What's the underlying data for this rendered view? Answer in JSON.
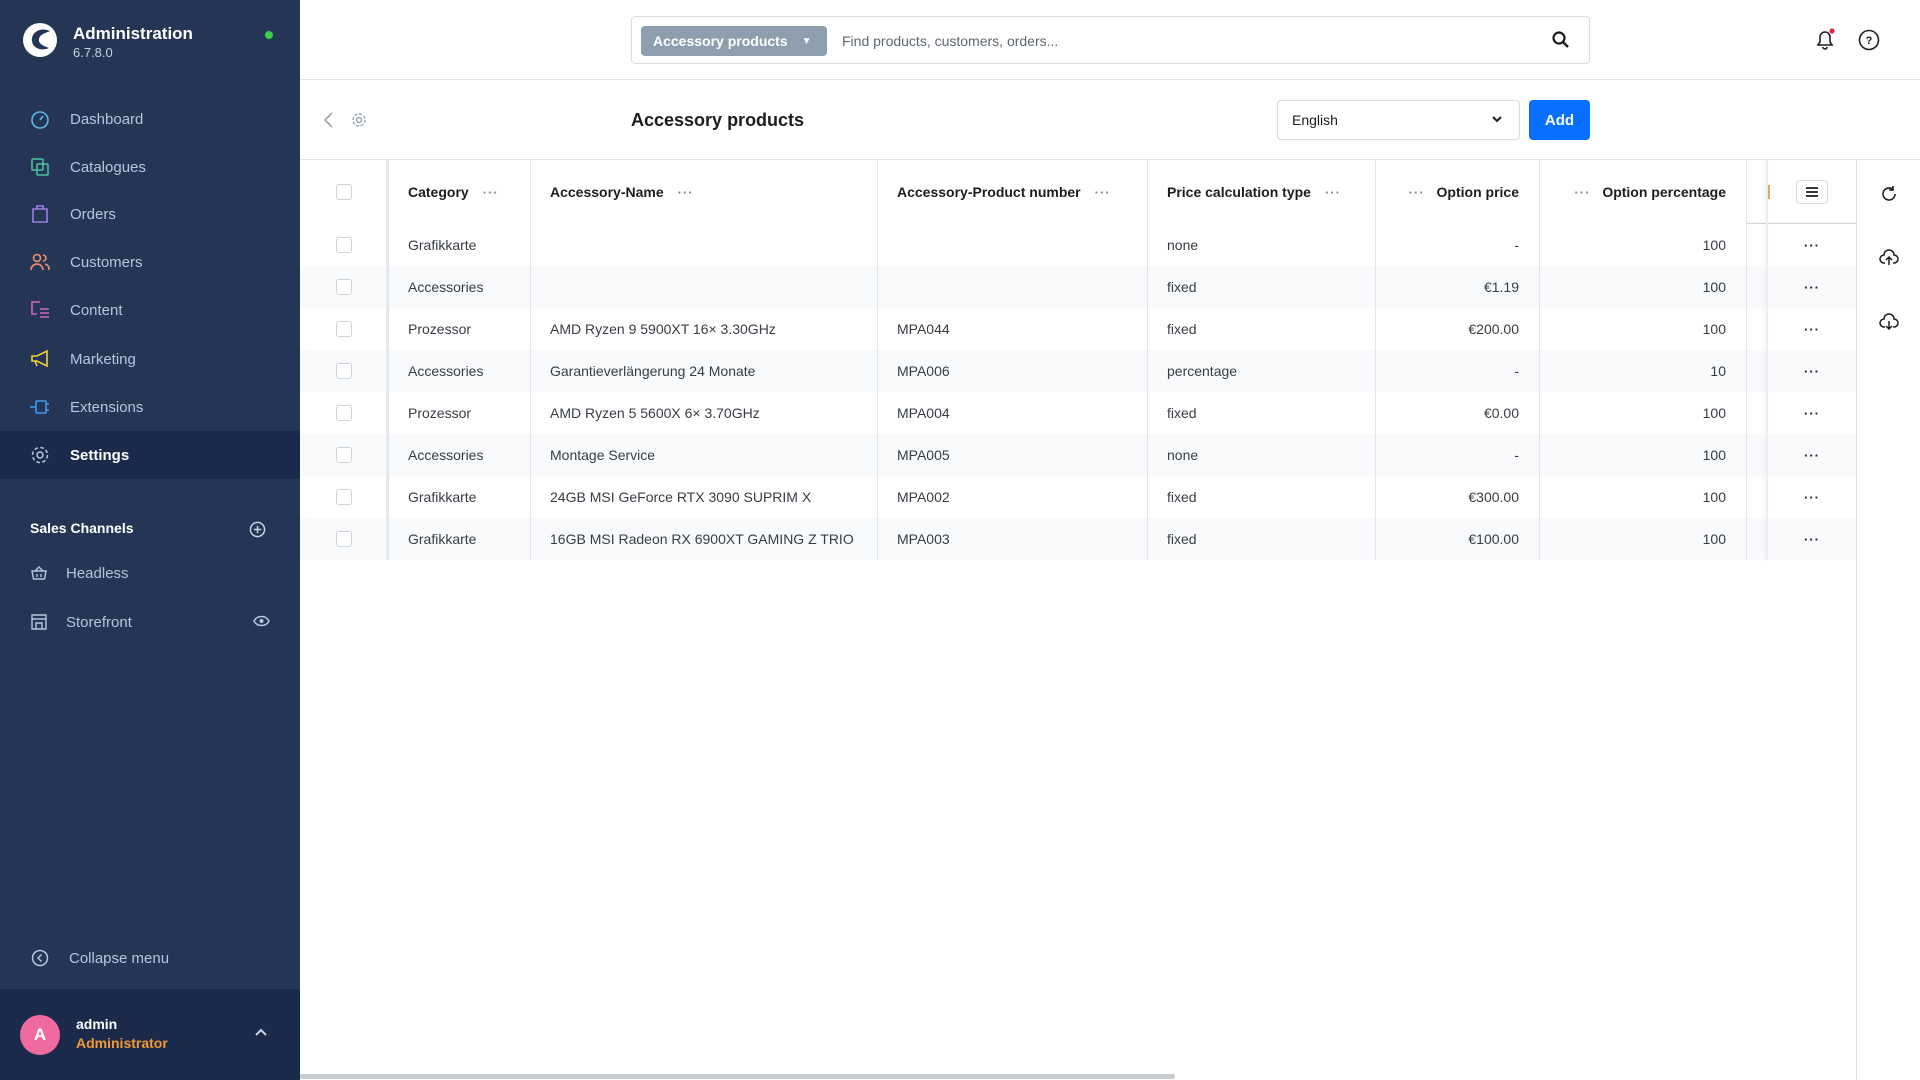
{
  "app": {
    "title": "Administration",
    "version": "6.7.8.0",
    "status_color": "#37d046"
  },
  "sidebar": {
    "items": [
      {
        "label": "Dashboard",
        "icon": "dashboard-icon",
        "color": "#5cb8e6"
      },
      {
        "label": "Catalogues",
        "icon": "catalogues-icon",
        "color": "#4ac39a"
      },
      {
        "label": "Orders",
        "icon": "orders-icon",
        "color": "#9d7fe6"
      },
      {
        "label": "Customers",
        "icon": "customers-icon",
        "color": "#f0936b"
      },
      {
        "label": "Content",
        "icon": "content-icon",
        "color": "#d665c4"
      },
      {
        "label": "Marketing",
        "icon": "marketing-icon",
        "color": "#f2d434"
      },
      {
        "label": "Extensions",
        "icon": "extensions-icon",
        "color": "#3d9bf0"
      },
      {
        "label": "Settings",
        "icon": "settings-icon",
        "color": "#b8c6dc",
        "active": true
      }
    ],
    "sales_channels_title": "Sales Channels",
    "sales_channels": [
      {
        "label": "Headless"
      },
      {
        "label": "Storefront"
      }
    ],
    "collapse_label": "Collapse menu",
    "user": {
      "initial": "A",
      "name": "admin",
      "role": "Administrator"
    }
  },
  "topbar": {
    "search_type": "Accessory products",
    "search_placeholder": "Find products, customers, orders..."
  },
  "page": {
    "title": "Accessory products",
    "language": "English",
    "add_label": "Add"
  },
  "table": {
    "columns": [
      "Category",
      "Accessory-Name",
      "Accessory-Product number",
      "Price calculation type",
      "Option price",
      "Option percentage"
    ],
    "rows": [
      [
        "Grafikkarte",
        "",
        "",
        "none",
        "-",
        "100"
      ],
      [
        "Accessories",
        "",
        "",
        "fixed",
        "€1.19",
        "100"
      ],
      [
        "Prozessor",
        "AMD Ryzen 9 5900XT 16× 3.30GHz",
        "MPA044",
        "fixed",
        "€200.00",
        "100"
      ],
      [
        "Accessories",
        "Garantieverlängerung 24 Monate",
        "MPA006",
        "percentage",
        "-",
        "10"
      ],
      [
        "Prozessor",
        "AMD Ryzen 5 5600X 6× 3.70GHz",
        "MPA004",
        "fixed",
        "€0.00",
        "100"
      ],
      [
        "Accessories",
        "Montage Service",
        "MPA005",
        "none",
        "-",
        "100"
      ],
      [
        "Grafikkarte",
        "24GB MSI GeForce RTX 3090 SUPRIM X",
        "MPA002",
        "fixed",
        "€300.00",
        "100"
      ],
      [
        "Grafikkarte",
        "16GB MSI Radeon RX 6900XT GAMING Z TRIO",
        "MPA003",
        "fixed",
        "€100.00",
        "100"
      ]
    ]
  }
}
